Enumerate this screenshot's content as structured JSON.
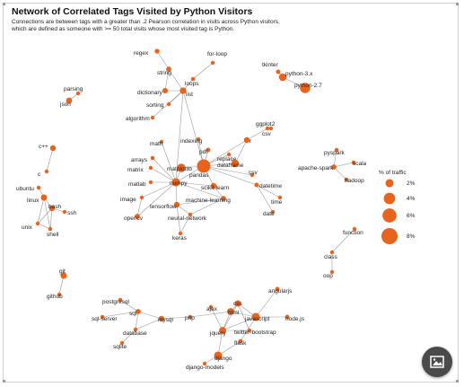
{
  "title": "Network of Correlated Tags Visited by Python Visitors",
  "subtitle_lines": [
    "Connections are between tags with a greater than .2 Pearson correlation in visits across Python visitors,",
    "which are defined as someone with >= 50 total visits whose most visited tag is Python."
  ],
  "legend": {
    "title": "% of traffic",
    "items": [
      {
        "label": "2%",
        "value": 2
      },
      {
        "label": "4%",
        "value": 4
      },
      {
        "label": "6%",
        "value": 6
      },
      {
        "label": "8%",
        "value": 8
      }
    ]
  },
  "colors": {
    "node": "#e8641e",
    "edge": "#9a9a9a",
    "edge_dark": "#555555"
  },
  "nodes": [
    {
      "id": "regex",
      "label": "regex",
      "value": 0.7
    },
    {
      "id": "string",
      "label": "string",
      "value": 0.8
    },
    {
      "id": "for-loop",
      "label": "for-loop",
      "value": 0.4
    },
    {
      "id": "loops",
      "label": "loops",
      "value": 0.5
    },
    {
      "id": "dictionary",
      "label": "dictionary",
      "value": 0.9
    },
    {
      "id": "list",
      "label": "list",
      "value": 1.3
    },
    {
      "id": "sorting",
      "label": "sorting",
      "value": 0.4
    },
    {
      "id": "algorithm",
      "label": "algorithm",
      "value": 0.4
    },
    {
      "id": "tkinter",
      "label": "tkinter",
      "value": 0.6
    },
    {
      "id": "python-3.x",
      "label": "python-3.x",
      "value": 1.8
    },
    {
      "id": "python-2.7",
      "label": "python-2.7",
      "value": 3.2
    },
    {
      "id": "csv",
      "label": "csv",
      "value": 0.4
    },
    {
      "id": "parsing",
      "label": "parsing",
      "value": 0.3
    },
    {
      "id": "json",
      "label": "json",
      "value": 1.1
    },
    {
      "id": "math",
      "label": "math",
      "value": 0.3
    },
    {
      "id": "indexing",
      "label": "indexing",
      "value": 0.3
    },
    {
      "id": "ggplot2",
      "label": "ggplot2",
      "value": 0.5
    },
    {
      "id": "r",
      "label": "r",
      "value": 1.0
    },
    {
      "id": "pdf",
      "label": "pdf",
      "value": 0.6
    },
    {
      "id": "arrays",
      "label": "arrays",
      "value": 0.5
    },
    {
      "id": "matrix",
      "label": "matrix",
      "value": 0.4
    },
    {
      "id": "matplotlib",
      "label": "matplotlib",
      "value": 2.2
    },
    {
      "id": "pandas",
      "label": "pandas",
      "value": 5.5
    },
    {
      "id": "replace",
      "label": "replace",
      "value": 0.4
    },
    {
      "id": "dataframe",
      "label": "dataframe",
      "value": 1.8
    },
    {
      "id": "csv2",
      "label": "csv",
      "value": 0.4
    },
    {
      "id": "matlab",
      "label": "matlab",
      "value": 0.4
    },
    {
      "id": "numpy",
      "label": "numpy",
      "value": 2.0
    },
    {
      "id": "scikit-learn",
      "label": "scikit-learn",
      "value": 1.0
    },
    {
      "id": "datetime",
      "label": "datetime",
      "value": 0.6
    },
    {
      "id": "time",
      "label": "time",
      "value": 0.4
    },
    {
      "id": "date",
      "label": "date",
      "value": 0.4
    },
    {
      "id": "image",
      "label": "image",
      "value": 0.4
    },
    {
      "id": "tensorflow",
      "label": "tensorflow",
      "value": 1.0
    },
    {
      "id": "machine-learning",
      "label": "machine-learning",
      "value": 0.8
    },
    {
      "id": "neural-network",
      "label": "neural-network",
      "value": 0.5
    },
    {
      "id": "opencv",
      "label": "opencv",
      "value": 0.8
    },
    {
      "id": "keras",
      "label": "keras",
      "value": 0.4
    },
    {
      "id": "pyspark",
      "label": "pyspark",
      "value": 0.5
    },
    {
      "id": "scala",
      "label": "scala",
      "value": 0.5
    },
    {
      "id": "apache-spark",
      "label": "apache-spark",
      "value": 0.8
    },
    {
      "id": "hadoop",
      "label": "hadoop",
      "value": 0.5
    },
    {
      "id": "c++",
      "label": "c++",
      "value": 1.0
    },
    {
      "id": "c",
      "label": "c",
      "value": 0.4
    },
    {
      "id": "ubuntu",
      "label": "ubuntu",
      "value": 0.3
    },
    {
      "id": "linux",
      "label": "linux",
      "value": 1.2
    },
    {
      "id": "bash",
      "label": "bash",
      "value": 1.0
    },
    {
      "id": "ssh",
      "label": "ssh",
      "value": 0.3
    },
    {
      "id": "unix",
      "label": "unix",
      "value": 0.4
    },
    {
      "id": "shell",
      "label": "shell",
      "value": 0.5
    },
    {
      "id": "function",
      "label": "function",
      "value": 0.4
    },
    {
      "id": "class",
      "label": "class",
      "value": 0.3
    },
    {
      "id": "oop",
      "label": "oop",
      "value": 0.3
    },
    {
      "id": "git",
      "label": "git",
      "value": 1.2
    },
    {
      "id": "github",
      "label": "github",
      "value": 0.4
    },
    {
      "id": "angularjs",
      "label": "angularjs",
      "value": 0.6
    },
    {
      "id": "postgresql",
      "label": "postgresql",
      "value": 0.5
    },
    {
      "id": "sql",
      "label": "sql",
      "value": 0.8
    },
    {
      "id": "sql-server",
      "label": "sql-server",
      "value": 0.5
    },
    {
      "id": "mysql",
      "label": "mysql",
      "value": 1.0
    },
    {
      "id": "database",
      "label": "database",
      "value": 0.5
    },
    {
      "id": "sqlite",
      "label": "sqlite",
      "value": 0.4
    },
    {
      "id": "ajax",
      "label": "ajax",
      "value": 0.4
    },
    {
      "id": "css",
      "label": "css",
      "value": 1.2
    },
    {
      "id": "html",
      "label": "html",
      "value": 1.5
    },
    {
      "id": "javascript",
      "label": "javascript",
      "value": 2.0
    },
    {
      "id": "php",
      "label": "php",
      "value": 0.5
    },
    {
      "id": "jquery",
      "label": "jquery",
      "value": 1.5
    },
    {
      "id": "node.js",
      "label": "node.js",
      "value": 0.6
    },
    {
      "id": "twitter-bootstrap",
      "label": "twitter-bootstrap",
      "value": 0.5
    },
    {
      "id": "flask",
      "label": "flask",
      "value": 0.6
    },
    {
      "id": "django",
      "label": "django",
      "value": 2.0
    },
    {
      "id": "django-models",
      "label": "django-models",
      "value": 0.4
    }
  ],
  "edges": [
    [
      "regex",
      "string"
    ],
    [
      "string",
      "list"
    ],
    [
      "string",
      "dictionary"
    ],
    [
      "for-loop",
      "loops"
    ],
    [
      "loops",
      "list"
    ],
    [
      "dictionary",
      "list"
    ],
    [
      "sorting",
      "list"
    ],
    [
      "algorithm",
      "list"
    ],
    [
      "list",
      "pandas"
    ],
    [
      "list",
      "numpy"
    ],
    [
      "tkinter",
      "python-3.x"
    ],
    [
      "python-3.x",
      "python-2.7"
    ],
    [
      "parsing",
      "json"
    ],
    [
      "math",
      "numpy"
    ],
    [
      "indexing",
      "pandas"
    ],
    [
      "ggplot2",
      "r"
    ],
    [
      "r",
      "pandas"
    ],
    [
      "r",
      "dataframe"
    ],
    [
      "pdf",
      "pandas"
    ],
    [
      "arrays",
      "numpy"
    ],
    [
      "matrix",
      "numpy"
    ],
    [
      "matplotlib",
      "numpy"
    ],
    [
      "matplotlib",
      "pandas"
    ],
    [
      "pandas",
      "dataframe"
    ],
    [
      "pandas",
      "numpy"
    ],
    [
      "pandas",
      "replace"
    ],
    [
      "pandas",
      "csv2"
    ],
    [
      "pandas",
      "datetime"
    ],
    [
      "pandas",
      "scikit-learn"
    ],
    [
      "dataframe",
      "replace"
    ],
    [
      "matlab",
      "numpy"
    ],
    [
      "numpy",
      "scikit-learn"
    ],
    [
      "numpy",
      "tensorflow"
    ],
    [
      "numpy",
      "image"
    ],
    [
      "numpy",
      "opencv"
    ],
    [
      "numpy",
      "machine-learning"
    ],
    [
      "datetime",
      "time"
    ],
    [
      "datetime",
      "date"
    ],
    [
      "tensorflow",
      "machine-learning"
    ],
    [
      "tensorflow",
      "keras"
    ],
    [
      "tensorflow",
      "neural-network"
    ],
    [
      "machine-learning",
      "neural-network"
    ],
    [
      "machine-learning",
      "scikit-learn"
    ],
    [
      "neural-network",
      "keras"
    ],
    [
      "image",
      "opencv"
    ],
    [
      "pyspark",
      "apache-spark"
    ],
    [
      "scala",
      "apache-spark"
    ],
    [
      "apache-spark",
      "hadoop"
    ],
    [
      "c++",
      "c"
    ],
    [
      "ubuntu",
      "linux"
    ],
    [
      "linux",
      "bash"
    ],
    [
      "linux",
      "unix"
    ],
    [
      "linux",
      "shell"
    ],
    [
      "bash",
      "ssh"
    ],
    [
      "bash",
      "shell"
    ],
    [
      "bash",
      "unix"
    ],
    [
      "unix",
      "shell"
    ],
    [
      "function",
      "class"
    ],
    [
      "class",
      "oop"
    ],
    [
      "git",
      "github"
    ],
    [
      "postgresql",
      "sql"
    ],
    [
      "sql",
      "sql-server"
    ],
    [
      "sql",
      "database"
    ],
    [
      "sql",
      "mysql"
    ],
    [
      "database",
      "sqlite"
    ],
    [
      "database",
      "mysql"
    ],
    [
      "mysql",
      "php"
    ],
    [
      "php",
      "html"
    ],
    [
      "ajax",
      "jquery"
    ],
    [
      "css",
      "html"
    ],
    [
      "html",
      "javascript"
    ],
    [
      "javascript",
      "jquery"
    ],
    [
      "javascript",
      "node.js"
    ],
    [
      "javascript",
      "angularjs"
    ],
    [
      "css",
      "twitter-bootstrap"
    ],
    [
      "jquery",
      "twitter-bootstrap"
    ],
    [
      "javascript",
      "flask"
    ],
    [
      "jquery",
      "django"
    ],
    [
      "flask",
      "django"
    ],
    [
      "django",
      "django-models"
    ],
    [
      "html",
      "jquery"
    ],
    [
      "css",
      "jquery"
    ],
    [
      "css",
      "javascript"
    ]
  ]
}
